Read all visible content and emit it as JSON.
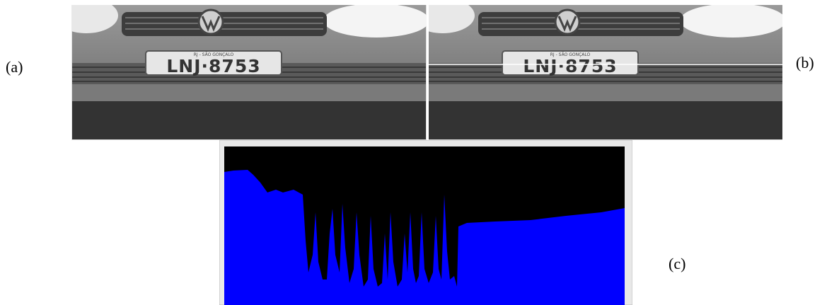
{
  "figure": {
    "panels": [
      {
        "label": "(a)",
        "plate": {
          "region": "RJ - SÃO GONÇALO",
          "number": "LNJ·8753"
        }
      },
      {
        "label": "(b)",
        "plate": {
          "region": "RJ - SÃO GONÇALO",
          "number": "LNJ·8753"
        }
      },
      {
        "label": "(c)"
      }
    ]
  }
}
